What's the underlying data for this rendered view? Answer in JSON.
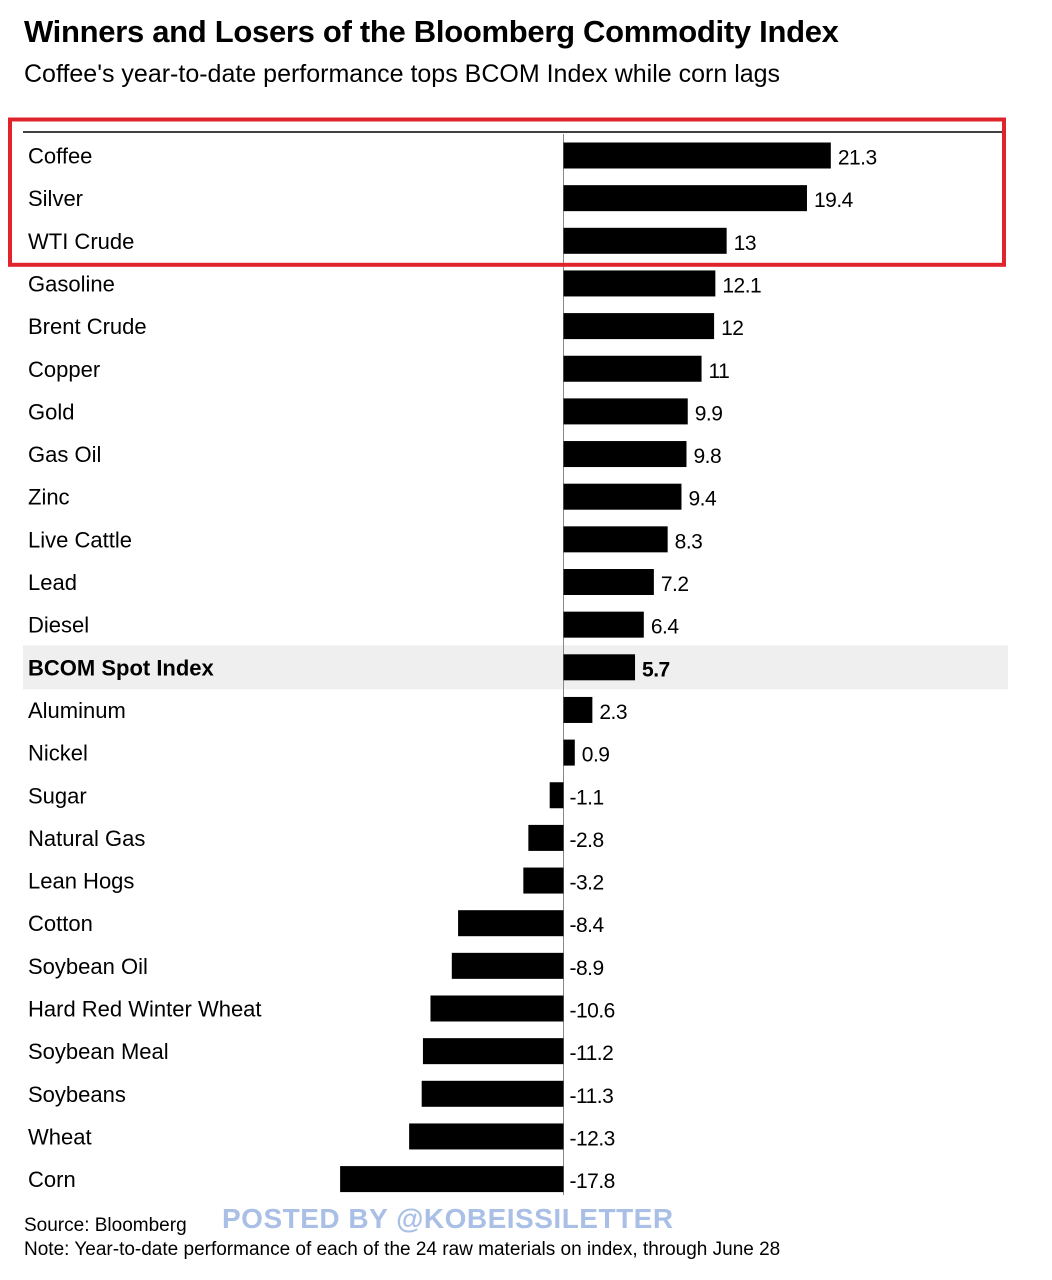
{
  "title": "Winners and Losers of the Bloomberg Commodity Index",
  "subtitle": "Coffee's year-to-date performance tops BCOM Index while corn lags",
  "footer": {
    "source": "Source: Bloomberg",
    "note": "Note: Year-to-date performance of each of the 24 raw materials on index, through June 28"
  },
  "watermark": "POSTED BY @KOBEISSILETTER",
  "colors": {
    "bar": "#000000",
    "highlight_box": "#e0242c",
    "index_row_background": "#efefef",
    "watermark": "#a9bfe6"
  },
  "chart_data": {
    "type": "bar",
    "orientation": "horizontal",
    "categories": [
      "Coffee",
      "Silver",
      "WTI Crude",
      "Gasoline",
      "Brent Crude",
      "Copper",
      "Gold",
      "Gas Oil",
      "Zinc",
      "Live Cattle",
      "Lead",
      "Diesel",
      "BCOM Spot Index",
      "Aluminum",
      "Nickel",
      "Sugar",
      "Natural Gas",
      "Lean Hogs",
      "Cotton",
      "Soybean Oil",
      "Hard Red Winter Wheat",
      "Soybean Meal",
      "Soybeans",
      "Wheat",
      "Corn"
    ],
    "values": [
      21.3,
      19.4,
      13,
      12.1,
      12,
      11,
      9.9,
      9.8,
      9.4,
      8.3,
      7.2,
      6.4,
      5.7,
      2.3,
      0.9,
      -1.1,
      -2.8,
      -3.2,
      -8.4,
      -8.9,
      -10.6,
      -11.2,
      -11.3,
      -12.3,
      -17.8
    ],
    "value_labels": [
      "21.3",
      "19.4",
      "13",
      "12.1",
      "12",
      "11",
      "9.9",
      "9.8",
      "9.4",
      "8.3",
      "7.2",
      "6.4",
      "5.7",
      "2.3",
      "0.9",
      "-1.1",
      "-2.8",
      "-3.2",
      "-8.4",
      "-8.9",
      "-10.6",
      "-11.2",
      "-11.3",
      "-12.3",
      "-17.8"
    ],
    "highlighted_row": "BCOM Spot Index",
    "boxed_categories": [
      "Coffee",
      "Silver",
      "WTI Crude"
    ],
    "xlim": [
      -17.8,
      21.3
    ],
    "grid": false,
    "legend": "none"
  }
}
